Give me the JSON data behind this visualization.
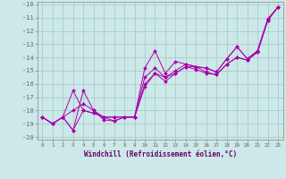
{
  "xlabel": "Windchill (Refroidissement éolien,°C)",
  "bg_color": "#cce8e8",
  "grid_color": "#aacccc",
  "line_color": "#aa00aa",
  "xlim": [
    -0.5,
    23.5
  ],
  "ylim": [
    -20.2,
    -9.8
  ],
  "xticks": [
    0,
    1,
    2,
    3,
    4,
    5,
    6,
    7,
    8,
    9,
    10,
    11,
    12,
    13,
    14,
    15,
    16,
    17,
    18,
    19,
    20,
    21,
    22,
    23
  ],
  "yticks": [
    -20,
    -19,
    -18,
    -17,
    -16,
    -15,
    -14,
    -13,
    -12,
    -11,
    -10
  ],
  "lines": [
    {
      "x": [
        0,
        1,
        2,
        3,
        4,
        5,
        6,
        7,
        8,
        9,
        10,
        11,
        12,
        13,
        14,
        15,
        16,
        17,
        18,
        19,
        20,
        21,
        22,
        23
      ],
      "y": [
        -18.5,
        -19.0,
        -18.5,
        -19.5,
        -16.5,
        -18.0,
        -18.5,
        -18.5,
        -18.5,
        -18.5,
        -14.8,
        -13.5,
        -15.2,
        -14.3,
        -14.5,
        -14.7,
        -14.8,
        -15.1,
        -14.1,
        -13.2,
        -14.1,
        -13.5,
        -11.1,
        -10.2
      ]
    },
    {
      "x": [
        0,
        1,
        2,
        3,
        4,
        5,
        6,
        7,
        8,
        9,
        10,
        11,
        12,
        13,
        14,
        15,
        16,
        17,
        18,
        19,
        20,
        21,
        22,
        23
      ],
      "y": [
        -18.5,
        -19.0,
        -18.5,
        -16.5,
        -18.0,
        -18.2,
        -18.5,
        -18.5,
        -18.5,
        -18.5,
        -15.5,
        -14.8,
        -15.5,
        -15.0,
        -14.5,
        -14.7,
        -14.8,
        -15.1,
        -14.1,
        -13.2,
        -14.1,
        -13.5,
        -11.1,
        -10.2
      ]
    },
    {
      "x": [
        0,
        1,
        2,
        3,
        4,
        5,
        6,
        7,
        8,
        9,
        10,
        11,
        12,
        13,
        14,
        15,
        16,
        17,
        18,
        19,
        20,
        21,
        22,
        23
      ],
      "y": [
        -18.5,
        -19.0,
        -18.5,
        -19.5,
        -18.0,
        -18.2,
        -18.5,
        -18.8,
        -18.5,
        -18.5,
        -16.0,
        -15.2,
        -15.5,
        -15.2,
        -14.7,
        -14.7,
        -15.1,
        -15.3,
        -14.5,
        -14.0,
        -14.2,
        -13.6,
        -11.2,
        -10.2
      ]
    },
    {
      "x": [
        0,
        1,
        2,
        3,
        4,
        5,
        6,
        7,
        8,
        9,
        10,
        11,
        12,
        13,
        14,
        15,
        16,
        17,
        18,
        19,
        20,
        21,
        22,
        23
      ],
      "y": [
        -18.5,
        -19.0,
        -18.5,
        -18.0,
        -17.5,
        -18.0,
        -18.7,
        -18.8,
        -18.5,
        -18.5,
        -16.2,
        -15.2,
        -15.8,
        -15.2,
        -14.7,
        -14.9,
        -15.2,
        -15.3,
        -14.5,
        -14.0,
        -14.2,
        -13.6,
        -11.2,
        -10.2
      ]
    }
  ]
}
